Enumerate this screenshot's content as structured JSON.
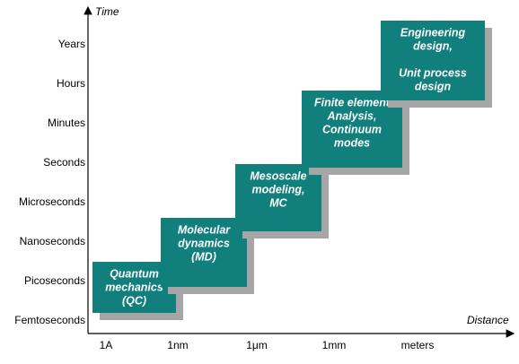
{
  "axes": {
    "y_label": "Time",
    "x_label": "Distance",
    "y_ticks": [
      "Years",
      "Hours",
      "Minutes",
      "Seconds",
      "Microseconds",
      "Nanoseconds",
      "Picoseconds",
      "Femtoseconds"
    ],
    "x_ticks": [
      "1A",
      "1nm",
      "1μm",
      "1mm",
      "meters"
    ]
  },
  "boxes": [
    {
      "paragraphs": [
        [
          "Quantum",
          "mechanics",
          "(QC)"
        ]
      ]
    },
    {
      "paragraphs": [
        [
          "Molecular",
          "dynamics",
          "(MD)"
        ]
      ]
    },
    {
      "paragraphs": [
        [
          "Mesoscale",
          "modeling,",
          "MC"
        ]
      ]
    },
    {
      "paragraphs": [
        [
          "Finite element",
          "Analysis,",
          "Continuum",
          "modes"
        ]
      ]
    },
    {
      "paragraphs": [
        [
          "Engineering",
          "design,"
        ],
        [
          "Unit process",
          "design"
        ]
      ]
    }
  ]
}
